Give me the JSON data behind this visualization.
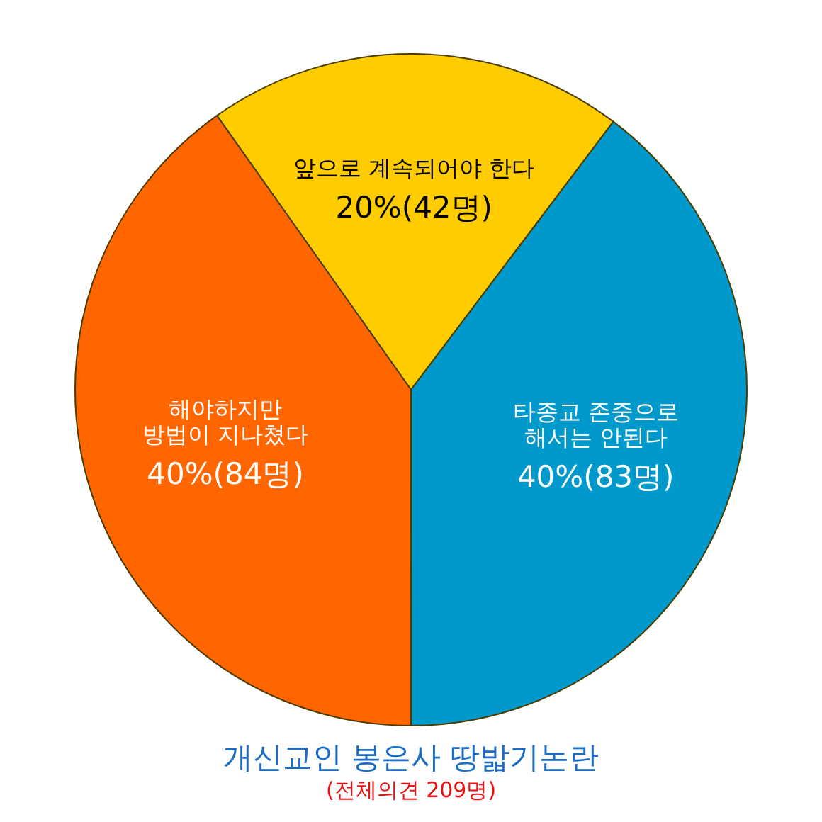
{
  "chart_data": {
    "type": "pie",
    "title": "개신교인 봉은사 땅밟기논란",
    "subtitle": "(전체의견 209명)",
    "categories": [
      "앞으로 계속되어야 한다",
      "타종교 존중으로\n해서는 안된다",
      "해야하지만\n방법이 지나쳤다"
    ],
    "values": [
      42,
      83,
      84
    ],
    "colors": [
      "#ffcc00",
      "#0099cc",
      "#ff6600"
    ],
    "value_labels": [
      "20%(42명)",
      "40%(83명)",
      "40%(84명)"
    ]
  }
}
